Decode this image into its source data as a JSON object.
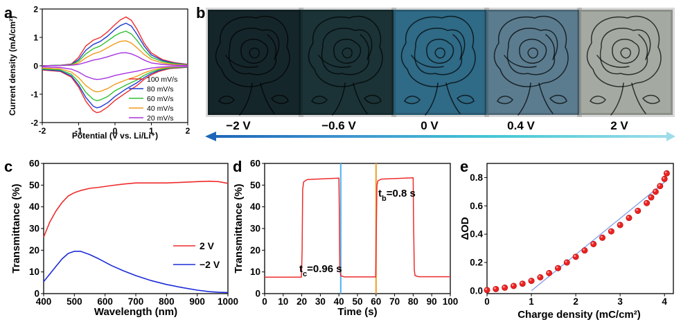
{
  "panels": {
    "a": "a",
    "b": "b",
    "c": "c",
    "d": "d",
    "e": "e"
  },
  "panel_b": {
    "voltages": [
      "−2 V",
      "−0.6 V",
      "0 V",
      "0.4 V",
      "2 V"
    ],
    "tile_colors": [
      "#15262a",
      "#1b3336",
      "#2f6a86",
      "#5b7c8f",
      "#a4aaa1"
    ],
    "arrow_colors": [
      "#1e66b8",
      "#3f95cf",
      "#44c8d4",
      "#9fdcea"
    ]
  },
  "chart_data": [
    {
      "panel": "a",
      "type": "line",
      "xlabel": "Potential (V vs. Li/Li⁺)",
      "ylabel": "Current density (mA/cm²)",
      "xlim": [
        -2,
        2
      ],
      "ylim": [
        -2,
        2
      ],
      "xticks": [
        "-2",
        "-1",
        "0",
        "1",
        "2"
      ],
      "yticks": [
        "-2",
        "-1",
        "0",
        "1",
        "2"
      ],
      "legend": "lower-right",
      "x_anodic": [
        -2.0,
        -1.5,
        -1.2,
        -1.0,
        -0.8,
        -0.6,
        -0.4,
        -0.2,
        0.0,
        0.15,
        0.3,
        0.45,
        0.6,
        0.8,
        1.0,
        1.3,
        1.6,
        2.0
      ],
      "x_cathodic": [
        2.0,
        1.5,
        1.2,
        1.0,
        0.8,
        0.6,
        0.3,
        0.0,
        -0.2,
        -0.4,
        -0.5,
        -0.6,
        -0.8,
        -1.0,
        -1.2,
        -1.5,
        -2.0
      ],
      "series": [
        {
          "name": "100 mV/s",
          "color": "#ee2b2b",
          "anodic": [
            0.0,
            0.02,
            0.06,
            0.3,
            0.7,
            0.9,
            1.0,
            1.2,
            1.45,
            1.62,
            1.72,
            1.6,
            1.3,
            0.8,
            0.45,
            0.22,
            0.12,
            0.05
          ],
          "cathodic": [
            -0.05,
            -0.1,
            -0.2,
            -0.32,
            -0.48,
            -0.7,
            -0.95,
            -1.22,
            -1.45,
            -1.62,
            -1.65,
            -1.58,
            -1.25,
            -0.75,
            -0.4,
            -0.2,
            -0.15
          ]
        },
        {
          "name": "80 mV/s",
          "color": "#1f3ad1",
          "anodic": [
            0.0,
            0.02,
            0.05,
            0.22,
            0.55,
            0.75,
            0.86,
            1.05,
            1.28,
            1.42,
            1.5,
            1.4,
            1.12,
            0.7,
            0.38,
            0.19,
            0.1,
            0.04
          ],
          "cathodic": [
            -0.05,
            -0.08,
            -0.17,
            -0.27,
            -0.42,
            -0.6,
            -0.82,
            -1.08,
            -1.3,
            -1.45,
            -1.48,
            -1.42,
            -1.12,
            -0.68,
            -0.36,
            -0.18,
            -0.13
          ]
        },
        {
          "name": "60 mV/s",
          "color": "#2fc12f",
          "anodic": [
            0.0,
            0.02,
            0.04,
            0.16,
            0.42,
            0.6,
            0.7,
            0.88,
            1.06,
            1.16,
            1.22,
            1.12,
            0.9,
            0.56,
            0.3,
            0.15,
            0.08,
            0.03
          ],
          "cathodic": [
            -0.04,
            -0.07,
            -0.14,
            -0.22,
            -0.34,
            -0.5,
            -0.68,
            -0.88,
            -1.08,
            -1.2,
            -1.23,
            -1.18,
            -0.94,
            -0.57,
            -0.3,
            -0.15,
            -0.11
          ]
        },
        {
          "name": "40 mV/s",
          "color": "#f29a1c",
          "anodic": [
            0.0,
            0.01,
            0.03,
            0.1,
            0.28,
            0.42,
            0.5,
            0.64,
            0.78,
            0.86,
            0.88,
            0.8,
            0.64,
            0.4,
            0.22,
            0.1,
            0.05,
            0.02
          ],
          "cathodic": [
            -0.03,
            -0.05,
            -0.1,
            -0.16,
            -0.25,
            -0.37,
            -0.5,
            -0.65,
            -0.8,
            -0.9,
            -0.92,
            -0.88,
            -0.7,
            -0.42,
            -0.22,
            -0.11,
            -0.08
          ]
        },
        {
          "name": "20 mV/s",
          "color": "#a633e0",
          "anodic": [
            0.0,
            0.01,
            0.02,
            0.05,
            0.12,
            0.2,
            0.25,
            0.32,
            0.4,
            0.45,
            0.46,
            0.42,
            0.34,
            0.2,
            0.1,
            0.05,
            0.02,
            0.01
          ],
          "cathodic": [
            -0.02,
            -0.03,
            -0.05,
            -0.08,
            -0.13,
            -0.19,
            -0.26,
            -0.34,
            -0.42,
            -0.47,
            -0.48,
            -0.46,
            -0.37,
            -0.22,
            -0.12,
            -0.06,
            -0.04
          ]
        }
      ]
    },
    {
      "panel": "c",
      "type": "line",
      "xlabel": "Wavelength (nm)",
      "ylabel": "Transmittance (%)",
      "xlim": [
        400,
        1000
      ],
      "ylim": [
        0,
        60
      ],
      "xticks": [
        "400",
        "500",
        "600",
        "700",
        "800",
        "900",
        "1000"
      ],
      "yticks": [
        "0",
        "10",
        "20",
        "30",
        "40",
        "50",
        "60"
      ],
      "legend": "center-right",
      "x": [
        400,
        420,
        440,
        460,
        480,
        500,
        520,
        550,
        580,
        620,
        660,
        700,
        750,
        800,
        850,
        900,
        940,
        970,
        1000
      ],
      "series": [
        {
          "name": "2 V",
          "color": "#ee2b2b",
          "values": [
            26,
            33,
            38,
            42,
            45,
            46.5,
            47.5,
            48.5,
            49,
            49.8,
            50.5,
            51,
            51,
            51,
            51.3,
            51.6,
            51.8,
            51.6,
            50.8
          ]
        },
        {
          "name": "−2 V",
          "color": "#1c2bd8",
          "values": [
            5.5,
            9,
            12.5,
            16,
            18.5,
            19.5,
            19.5,
            18,
            16,
            13,
            10.5,
            8.3,
            6,
            4.2,
            2.8,
            1.6,
            0.9,
            0.6,
            0.5
          ]
        }
      ]
    },
    {
      "panel": "d",
      "type": "line",
      "xlabel": "Time (s)",
      "ylabel": "Transmittance (%)",
      "xlim": [
        0,
        100
      ],
      "ylim": [
        0,
        60
      ],
      "xticks": [
        "0",
        "10",
        "20",
        "30",
        "40",
        "50",
        "60",
        "70",
        "80",
        "90",
        "100"
      ],
      "yticks": [
        "0",
        "10",
        "20",
        "30",
        "40",
        "50",
        "60"
      ],
      "annotation_tc": {
        "main": "t",
        "sub": "c",
        "value": "=0.96 s"
      },
      "annotation_tb": {
        "main": "t",
        "sub": "b",
        "value": "=0.8 s"
      },
      "markers": [
        {
          "x": 41,
          "color": "#5ab6f0"
        },
        {
          "x": 60,
          "color": "#f2a532"
        }
      ],
      "x": [
        0,
        19.8,
        20.2,
        20.5,
        21,
        23,
        40,
        40.2,
        40.5,
        41,
        43,
        59.8,
        60.2,
        60.5,
        61,
        63,
        80,
        80.2,
        80.6,
        81,
        83,
        100
      ],
      "series": [
        {
          "name": "transmittance",
          "color": "#ee2b2b",
          "values": [
            7.6,
            7.6,
            20,
            48,
            51.5,
            52.6,
            53.2,
            40,
            12,
            8.2,
            7.7,
            7.7,
            32,
            50,
            52,
            52.8,
            53.4,
            35,
            11,
            8.3,
            7.8,
            7.8
          ]
        }
      ]
    },
    {
      "panel": "e",
      "type": "scatter",
      "xlabel": "Charge density (mC/cm²)",
      "ylabel": "ΔOD",
      "xlim": [
        0,
        4.2
      ],
      "ylim": [
        -0.02,
        0.9
      ],
      "xticks": [
        "0",
        "1",
        "2",
        "3",
        "4"
      ],
      "yticks": [
        "0.0",
        "0.2",
        "0.4",
        "0.6",
        "0.8"
      ],
      "marker_color": "#ee2020",
      "fit_color": "#7e9ce8",
      "fit_line": {
        "x": [
          1.0,
          4.05
        ],
        "y": [
          0.0,
          0.78
        ]
      },
      "x": [
        0.0,
        0.2,
        0.4,
        0.6,
        0.8,
        1.0,
        1.2,
        1.4,
        1.6,
        1.8,
        2.0,
        2.2,
        2.4,
        2.6,
        2.8,
        3.0,
        3.2,
        3.4,
        3.6,
        3.7,
        3.8,
        3.9,
        4.0,
        4.05
      ],
      "y": [
        0.005,
        0.012,
        0.022,
        0.034,
        0.05,
        0.07,
        0.095,
        0.125,
        0.16,
        0.2,
        0.24,
        0.285,
        0.33,
        0.375,
        0.42,
        0.465,
        0.515,
        0.565,
        0.62,
        0.66,
        0.7,
        0.74,
        0.79,
        0.83
      ]
    }
  ]
}
